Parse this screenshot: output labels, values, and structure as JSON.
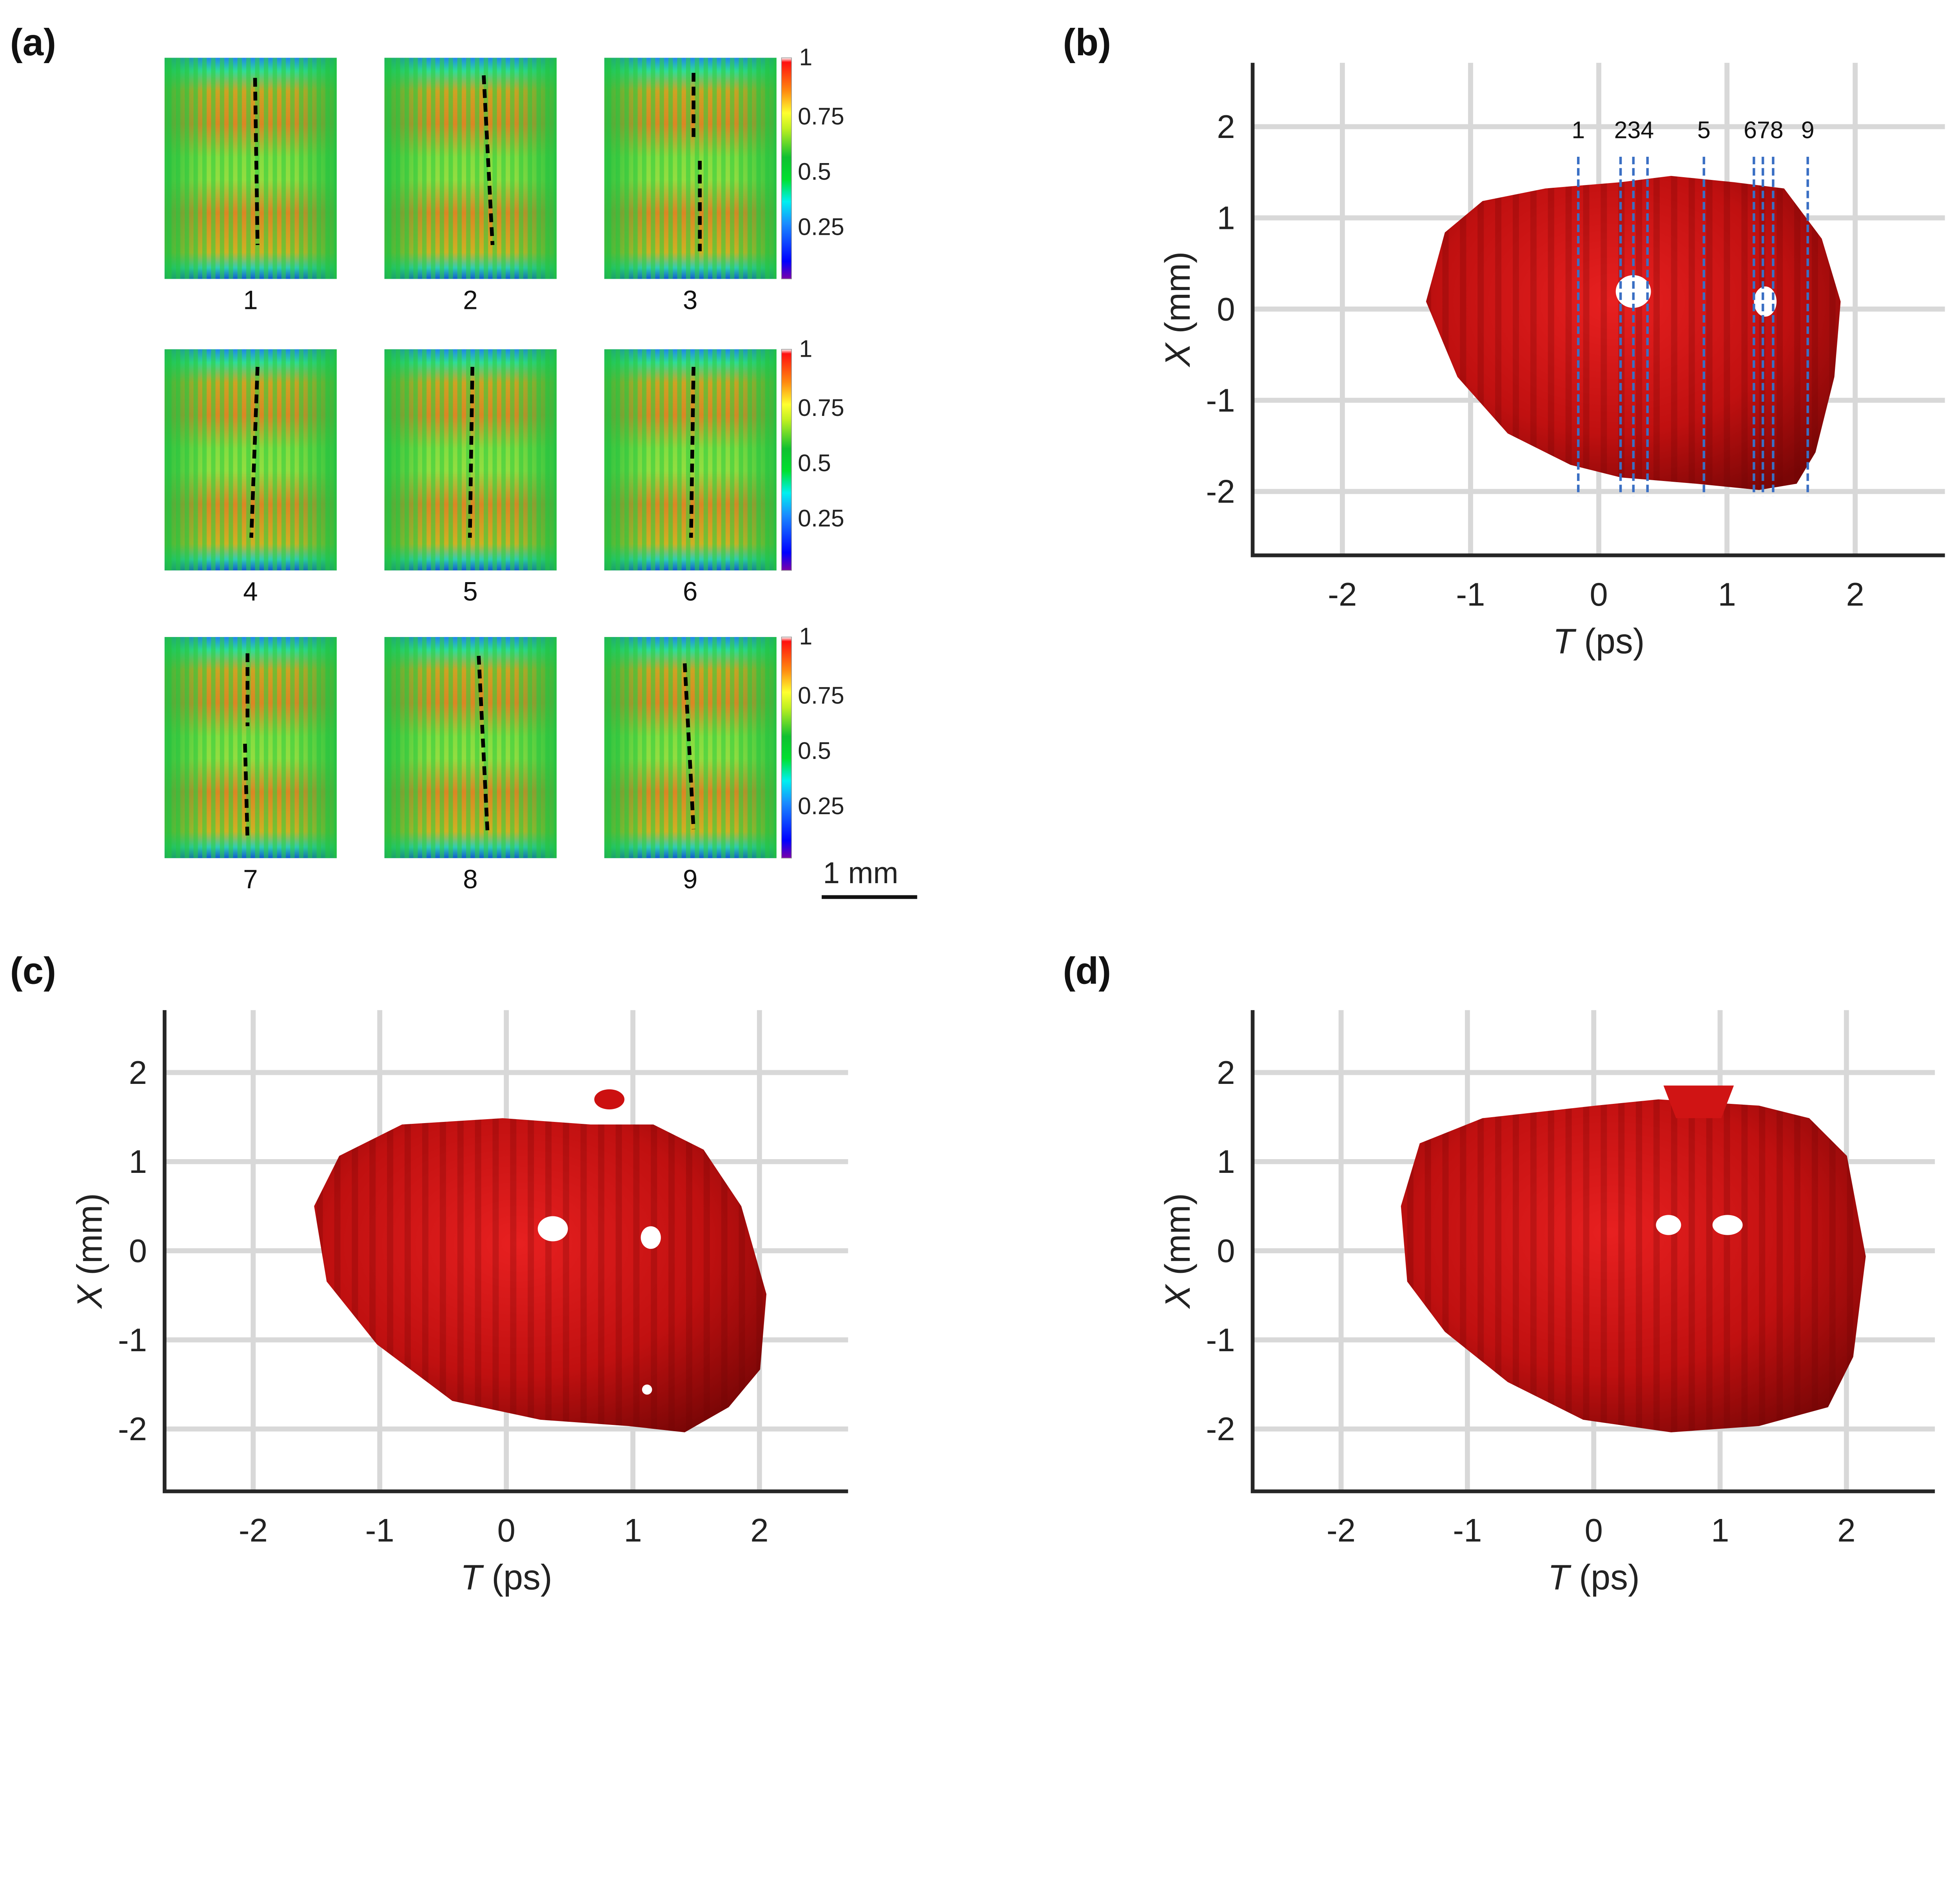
{
  "panel_labels": {
    "a": "(a)",
    "b": "(b)",
    "c": "(c)",
    "d": "(d)"
  },
  "snapshots": {
    "labels": [
      "1",
      "2",
      "3",
      "4",
      "5",
      "6",
      "7",
      "8",
      "9"
    ],
    "colormap": "jet",
    "colorbar_ticks": [
      "1",
      "0.75",
      "0.5",
      "0.25"
    ],
    "colorbar_values": [
      1,
      0.75,
      0.5,
      0.25
    ],
    "scale_bar_label": "1 mm"
  },
  "axes": {
    "x_label_italic": "T",
    "x_label_unit": " (ps)",
    "y_label_italic": "X",
    "y_label_unit": " (mm)",
    "x_ticks": [
      -2,
      -1,
      0,
      1,
      2
    ],
    "x_tick_labels": [
      "-2",
      "-1",
      "0",
      "1",
      "2"
    ],
    "y_ticks": [
      2,
      1,
      0,
      -1,
      -2
    ],
    "y_tick_labels": [
      "2",
      "1",
      "0",
      "-1",
      "-2"
    ],
    "xlim": [
      -2.7,
      2.7
    ],
    "ylim": [
      -2.7,
      2.7
    ],
    "grid": true,
    "surface_color": "#cc1010"
  },
  "slice_markers": {
    "labels": [
      "1",
      "2",
      "3",
      "4",
      "5",
      "6",
      "7",
      "8",
      "9"
    ],
    "label_groups": [
      "1",
      "234",
      "5",
      "678",
      "9"
    ],
    "T_values": [
      -0.16,
      0.17,
      0.27,
      0.38,
      0.82,
      1.21,
      1.28,
      1.36,
      1.63
    ],
    "X_range": [
      -2.05,
      1.67
    ],
    "color": "#3a6fc4"
  }
}
